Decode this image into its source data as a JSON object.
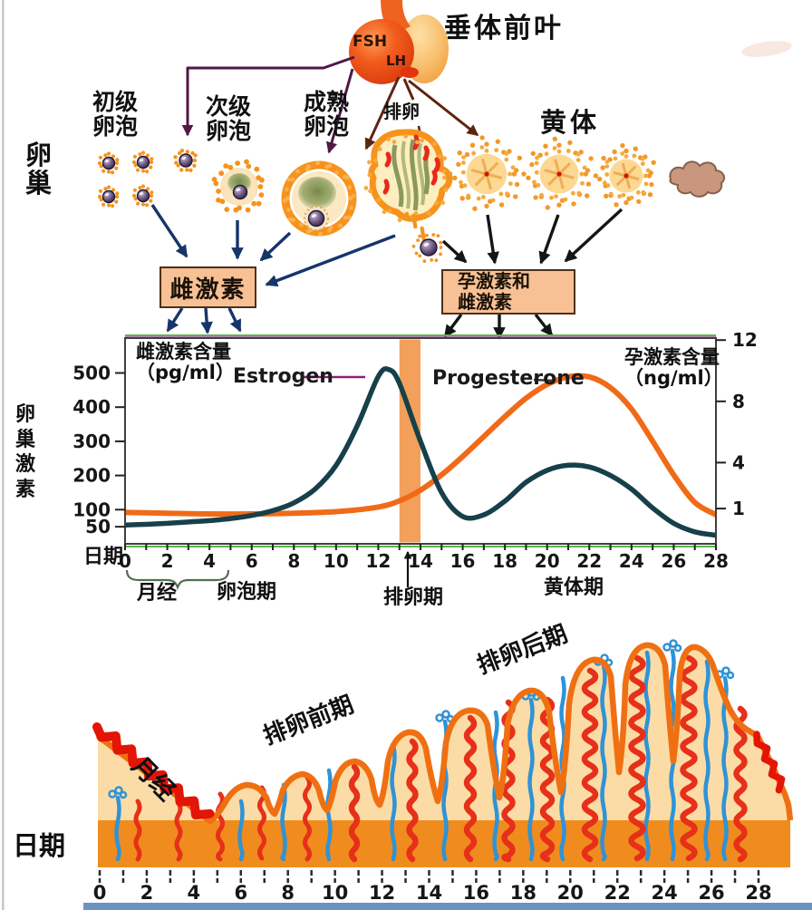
{
  "pituitary": {
    "label": "垂体前叶",
    "hormone_fsh": "FSH",
    "hormone_lh": "LH"
  },
  "ovary": {
    "label": "卵\n巢",
    "stage_primary": "初级\n卵泡",
    "stage_secondary": "次级\n卵泡",
    "stage_mature": "成熟\n卵泡",
    "stage_ovulation": "排卵",
    "stage_corpus_luteum": "黄体"
  },
  "hormone_boxes": {
    "estrogen": "雌激素",
    "progesterone_estrogen": "孕激素和\n雌激素"
  },
  "chart_data": {
    "type": "line",
    "x_axis": {
      "label": "日期",
      "range": [
        0,
        28
      ],
      "tick_step": 2,
      "ticks": [
        0,
        2,
        4,
        6,
        8,
        10,
        12,
        14,
        16,
        18,
        20,
        22,
        24,
        26,
        28
      ]
    },
    "left_axis": {
      "title": "雌激素含量\n（pg/ml）",
      "unit": "pg/ml",
      "ticks": [
        500,
        400,
        300,
        200,
        100,
        50
      ],
      "range": [
        0,
        520
      ]
    },
    "right_axis": {
      "title": "孕激素含量\n（ng/ml）",
      "unit": "ng/ml",
      "ticks": [
        12,
        8,
        4,
        1
      ],
      "range": [
        0,
        12
      ]
    },
    "side_label": "卵\n巢\n激\n素",
    "ovulation_band": {
      "from_day": 13,
      "to_day": 14
    },
    "series": [
      {
        "name": "Estrogen",
        "axis": "left",
        "color": "#16404a",
        "points": [
          [
            0,
            55
          ],
          [
            1,
            57
          ],
          [
            2,
            60
          ],
          [
            3,
            64
          ],
          [
            4,
            68
          ],
          [
            5,
            74
          ],
          [
            6,
            83
          ],
          [
            7,
            97
          ],
          [
            8,
            120
          ],
          [
            9,
            160
          ],
          [
            10,
            230
          ],
          [
            11,
            345
          ],
          [
            12,
            490
          ],
          [
            12.5,
            510
          ],
          [
            13,
            470
          ],
          [
            14,
            300
          ],
          [
            15,
            150
          ],
          [
            16,
            80
          ],
          [
            17,
            85
          ],
          [
            18,
            125
          ],
          [
            19,
            180
          ],
          [
            20,
            215
          ],
          [
            21,
            230
          ],
          [
            22,
            225
          ],
          [
            23,
            200
          ],
          [
            24,
            160
          ],
          [
            25,
            105
          ],
          [
            26,
            60
          ],
          [
            27,
            35
          ],
          [
            28,
            25
          ]
        ]
      },
      {
        "name": "Progesterone",
        "axis": "right",
        "color": "#f06a18",
        "points": [
          [
            0,
            0.75
          ],
          [
            2,
            0.7
          ],
          [
            4,
            0.65
          ],
          [
            6,
            0.65
          ],
          [
            8,
            0.7
          ],
          [
            10,
            0.8
          ],
          [
            12,
            1.1
          ],
          [
            13,
            1.5
          ],
          [
            14,
            2.2
          ],
          [
            15,
            3.2
          ],
          [
            16,
            4.4
          ],
          [
            17,
            5.7
          ],
          [
            18,
            7.0
          ],
          [
            19,
            8.2
          ],
          [
            20,
            9.1
          ],
          [
            21,
            9.6
          ],
          [
            22,
            9.6
          ],
          [
            23,
            8.9
          ],
          [
            24,
            7.5
          ],
          [
            25,
            5.4
          ],
          [
            26,
            3.2
          ],
          [
            27,
            1.4
          ],
          [
            28,
            0.6
          ]
        ]
      }
    ],
    "phases": [
      {
        "label": "月经",
        "from_day": 0,
        "to_day": 5
      },
      {
        "label": "卵泡期",
        "from_day": 5,
        "to_day": 13
      },
      {
        "label": "排卵期",
        "from_day": 13,
        "to_day": 14
      },
      {
        "label": "黄体期",
        "from_day": 14,
        "to_day": 28
      }
    ],
    "legend_position": "inside-top",
    "grid": false
  },
  "endometrium": {
    "x_label": "日期",
    "x_ticks": [
      0,
      2,
      4,
      6,
      8,
      10,
      12,
      14,
      16,
      18,
      20,
      22,
      24,
      26,
      28
    ],
    "phase_menstruation": "月经",
    "phase_preovulatory": "排卵前期",
    "phase_postovulatory": "排卵后期"
  },
  "colors": {
    "estrogen_line": "#16404a",
    "progesterone_line": "#f06a18",
    "ovulation_band": "#f3a05a",
    "box_fill": "#f8c095",
    "endometrium_border": "#ef7012",
    "endometrium_fill": "#fcdca6",
    "endometrium_base": "#f08c1e",
    "menses_red": "#e31507",
    "vessel_blue": "#2f93d6",
    "vessel_red": "#e63019",
    "follicle_orange": "#f6931d"
  }
}
